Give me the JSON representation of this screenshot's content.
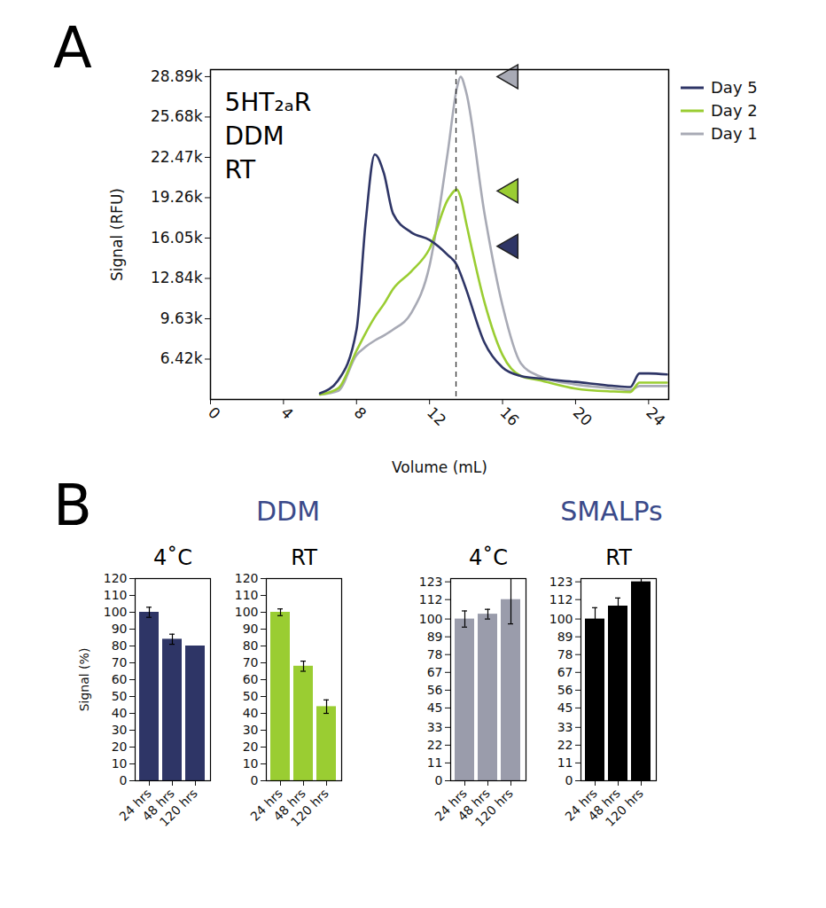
{
  "chart_data": [
    {
      "type": "line",
      "panel": "A",
      "annotations": [
        "5HT₂ₐR",
        "DDM",
        "RT"
      ],
      "x_label": "Volume (mL)",
      "y_label": "Signal (RFU)",
      "x": [
        6,
        7,
        8,
        8.5,
        9,
        9.5,
        10,
        11,
        12,
        13,
        13.5,
        13.7,
        14,
        15,
        16,
        17,
        18,
        20,
        22,
        23,
        23.5,
        24,
        25
      ],
      "series": [
        {
          "name": "Day 5",
          "color": "#2e3566",
          "values": [
            3700,
            4750,
            8760,
            17300,
            22700,
            21200,
            18000,
            16500,
            15900,
            14700,
            13900,
            13200,
            12000,
            7760,
            5750,
            5080,
            4880,
            4610,
            4300,
            4200,
            5280,
            5280,
            5200
          ]
        },
        {
          "name": "Day 2",
          "color": "#9acd32",
          "values": [
            3600,
            4100,
            7090,
            8500,
            9760,
            10800,
            12000,
            13400,
            15200,
            19100,
            19900,
            19300,
            17300,
            11000,
            6750,
            5080,
            4750,
            4080,
            3850,
            3800,
            4550,
            4550,
            4550
          ]
        },
        {
          "name": "Day 1",
          "color": "#a8aab5",
          "values": [
            3600,
            3900,
            6750,
            7400,
            7900,
            8300,
            8760,
            10100,
            13850,
            22900,
            28000,
            28890,
            27700,
            18100,
            10670,
            6090,
            5080,
            4400,
            4100,
            3950,
            4280,
            4280,
            4280
          ]
        }
      ],
      "xlim": [
        0,
        25.1
      ],
      "xticks": [
        0,
        4,
        8,
        12,
        16,
        20,
        24
      ],
      "ylim": [
        3210,
        29450
      ],
      "yticks": [
        {
          "value": 6420,
          "label": "6.42k"
        },
        {
          "value": 9630,
          "label": "9.63k"
        },
        {
          "value": 12840,
          "label": "12.84k"
        },
        {
          "value": 16050,
          "label": "16.05k"
        },
        {
          "value": 19260,
          "label": "19.26k"
        },
        {
          "value": 22470,
          "label": "22.47k"
        },
        {
          "value": 25680,
          "label": "25.68k"
        },
        {
          "value": 28890,
          "label": "28.89k"
        }
      ],
      "reference_line": {
        "x": 13.45,
        "line_style": "dashed"
      },
      "peak_markers": [
        {
          "series": "Day 1",
          "y": 28890
        },
        {
          "series": "Day 2",
          "y": 19800
        },
        {
          "series": "Day 5",
          "y": 15400
        }
      ],
      "legend": "right"
    },
    {
      "type": "bar",
      "panel": "B",
      "group": "DDM",
      "title": "4˚C",
      "y_label": "Signal (%)",
      "categories": [
        "24 hrs",
        "48 hrs",
        "120 hrs"
      ],
      "values": [
        100,
        84,
        80
      ],
      "errors": [
        3,
        3,
        0
      ],
      "color": "#2e3566",
      "ylim": [
        0,
        120
      ],
      "yticks": [
        0,
        10,
        20,
        30,
        40,
        50,
        60,
        70,
        80,
        90,
        100,
        110,
        120
      ]
    },
    {
      "type": "bar",
      "panel": "B",
      "group": "DDM",
      "title": "RT",
      "categories": [
        "24 hrs",
        "48 hrs",
        "120 hrs"
      ],
      "values": [
        100,
        68,
        44
      ],
      "errors": [
        2,
        3,
        4
      ],
      "color": "#9acd32",
      "ylim": [
        0,
        120
      ],
      "yticks": [
        0,
        10,
        20,
        30,
        40,
        50,
        60,
        70,
        80,
        90,
        100,
        110,
        120
      ]
    },
    {
      "type": "bar",
      "panel": "B",
      "group": "SMALPs",
      "title": "4˚C",
      "categories": [
        "24 hrs",
        "48 hrs",
        "120 hrs"
      ],
      "values": [
        100,
        103,
        112
      ],
      "errors": [
        5,
        3,
        15
      ],
      "color": "#9a9cab",
      "ylim": [
        0,
        125
      ],
      "yticks": [
        0,
        11,
        22,
        33,
        45,
        56,
        67,
        78,
        89,
        100,
        112,
        123
      ]
    },
    {
      "type": "bar",
      "panel": "B",
      "group": "SMALPs",
      "title": "RT",
      "categories": [
        "24 hrs",
        "48 hrs",
        "120 hrs"
      ],
      "values": [
        100,
        108,
        123
      ],
      "errors": [
        7,
        5,
        4
      ],
      "color": "#000000",
      "ylim": [
        0,
        125
      ],
      "yticks": [
        0,
        11,
        22,
        33,
        45,
        56,
        67,
        78,
        89,
        100,
        112,
        123
      ]
    }
  ]
}
